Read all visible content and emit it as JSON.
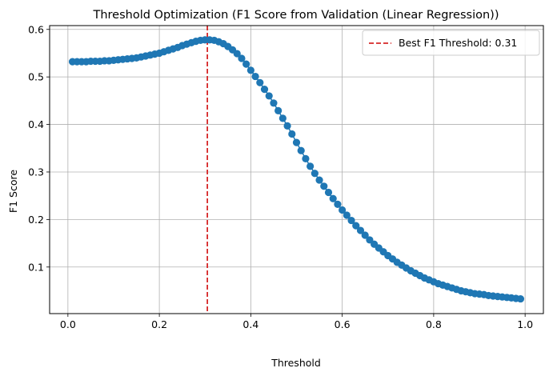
{
  "chart_data": {
    "type": "line",
    "title": "Threshold Optimization (F1 Score from Validation (Linear Regression))",
    "xlabel": "Threshold",
    "ylabel": "F1 Score",
    "xlim": [
      -0.04,
      1.04
    ],
    "ylim": [
      0.002,
      0.608
    ],
    "x_ticks": [
      0.0,
      0.2,
      0.4,
      0.6,
      0.8,
      1.0
    ],
    "x_tick_labels": [
      "0.0",
      "0.2",
      "0.4",
      "0.6",
      "0.8",
      "1.0"
    ],
    "y_ticks": [
      0.1,
      0.2,
      0.3,
      0.4,
      0.5,
      0.6
    ],
    "y_tick_labels": [
      "0.1",
      "0.2",
      "0.3",
      "0.4",
      "0.5",
      "0.6"
    ],
    "grid": true,
    "legend_position": "top-right",
    "series": [
      {
        "marker": "o",
        "color": "#1f77b4",
        "x": [
          0.01,
          0.02,
          0.03,
          0.04,
          0.05,
          0.06,
          0.07,
          0.08,
          0.09,
          0.1,
          0.11,
          0.12,
          0.13,
          0.14,
          0.15,
          0.16,
          0.17,
          0.18,
          0.19,
          0.2,
          0.21,
          0.22,
          0.23,
          0.24,
          0.25,
          0.26,
          0.27,
          0.28,
          0.29,
          0.3,
          0.31,
          0.32,
          0.33,
          0.34,
          0.35,
          0.36,
          0.37,
          0.38,
          0.39,
          0.4,
          0.41,
          0.42,
          0.43,
          0.44,
          0.45,
          0.46,
          0.47,
          0.48,
          0.49,
          0.5,
          0.51,
          0.52,
          0.53,
          0.54,
          0.55,
          0.56,
          0.57,
          0.58,
          0.59,
          0.6,
          0.61,
          0.62,
          0.63,
          0.64,
          0.65,
          0.66,
          0.67,
          0.68,
          0.69,
          0.7,
          0.71,
          0.72,
          0.73,
          0.74,
          0.75,
          0.76,
          0.77,
          0.78,
          0.79,
          0.8,
          0.81,
          0.82,
          0.83,
          0.84,
          0.85,
          0.86,
          0.87,
          0.88,
          0.89,
          0.9,
          0.91,
          0.92,
          0.93,
          0.94,
          0.95,
          0.96,
          0.97,
          0.98,
          0.99
        ],
        "y": [
          0.532,
          0.532,
          0.532,
          0.532,
          0.533,
          0.533,
          0.533,
          0.534,
          0.534,
          0.535,
          0.536,
          0.537,
          0.538,
          0.539,
          0.54,
          0.542,
          0.544,
          0.546,
          0.548,
          0.55,
          0.553,
          0.556,
          0.559,
          0.562,
          0.566,
          0.569,
          0.572,
          0.575,
          0.577,
          0.578,
          0.578,
          0.577,
          0.574,
          0.57,
          0.564,
          0.557,
          0.549,
          0.539,
          0.527,
          0.514,
          0.501,
          0.488,
          0.474,
          0.46,
          0.445,
          0.429,
          0.413,
          0.397,
          0.38,
          0.362,
          0.345,
          0.328,
          0.312,
          0.297,
          0.283,
          0.27,
          0.257,
          0.244,
          0.232,
          0.22,
          0.209,
          0.198,
          0.187,
          0.177,
          0.167,
          0.157,
          0.148,
          0.14,
          0.132,
          0.124,
          0.117,
          0.11,
          0.104,
          0.098,
          0.092,
          0.087,
          0.082,
          0.077,
          0.073,
          0.069,
          0.065,
          0.062,
          0.059,
          0.056,
          0.053,
          0.05,
          0.048,
          0.046,
          0.044,
          0.043,
          0.042,
          0.04,
          0.039,
          0.038,
          0.037,
          0.036,
          0.035,
          0.034,
          0.033
        ]
      }
    ],
    "reference_line": {
      "x": 0.305,
      "color": "#d62728",
      "style": "dashed",
      "label": "Best F1 Threshold: 0.31"
    }
  }
}
